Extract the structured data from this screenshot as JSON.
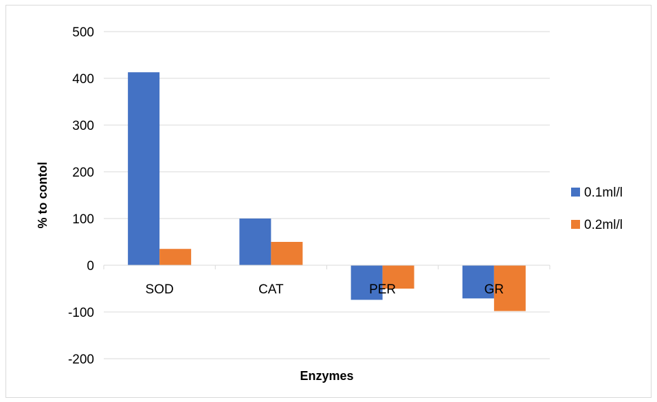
{
  "chart_data": {
    "type": "bar",
    "title": "",
    "xlabel": "Enzymes",
    "ylabel": "% to contol",
    "categories": [
      "SOD",
      "CAT",
      "PER",
      "GR"
    ],
    "series": [
      {
        "name": "0.1ml/l",
        "values": [
          413,
          100,
          -74,
          -71
        ],
        "color": "#4472C4"
      },
      {
        "name": "0.2ml/l",
        "values": [
          35,
          50,
          -50,
          -98
        ],
        "color": "#ED7D31"
      }
    ],
    "ylim": [
      -200,
      500
    ],
    "yticks": [
      -200,
      -100,
      0,
      100,
      200,
      300,
      400,
      500
    ],
    "grid": true,
    "legend_position": "right"
  }
}
